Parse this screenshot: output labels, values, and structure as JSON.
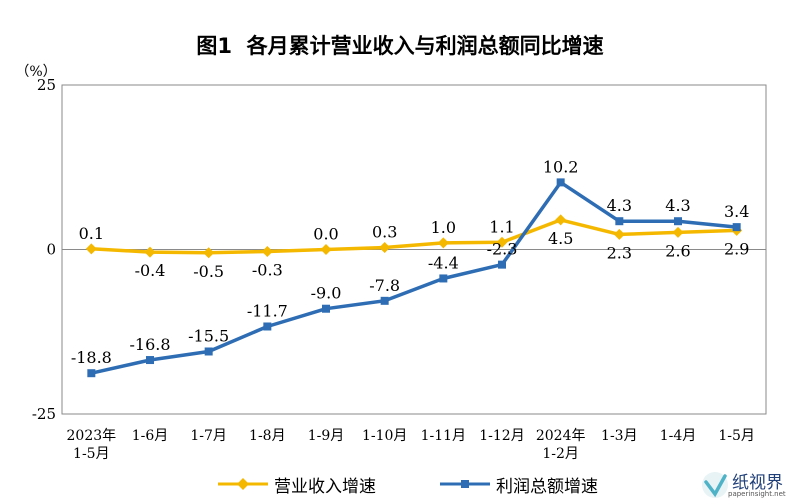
{
  "chart_data": {
    "type": "line",
    "title": "图1  各月累计营业收入与利润总额同比增速",
    "unit_label": "（%）",
    "ylim": [
      -25,
      25
    ],
    "y_ticks": [
      "25",
      "0",
      "-25"
    ],
    "categories": [
      [
        "2023年",
        "1-5月"
      ],
      [
        "1-6月"
      ],
      [
        "1-7月"
      ],
      [
        "1-8月"
      ],
      [
        "1-9月"
      ],
      [
        "1-10月"
      ],
      [
        "1-11月"
      ],
      [
        "1-12月"
      ],
      [
        "2024年",
        "1-2月"
      ],
      [
        "1-3月"
      ],
      [
        "1-4月"
      ],
      [
        "1-5月"
      ]
    ],
    "series": [
      {
        "name": "营业收入增速",
        "color": "#f5b800",
        "marker": "diamond",
        "values": [
          0.1,
          -0.4,
          -0.5,
          -0.3,
          0.0,
          0.3,
          1.0,
          1.1,
          4.5,
          2.3,
          2.6,
          2.9
        ],
        "labels": [
          "0.1",
          "-0.4",
          "-0.5",
          "-0.3",
          "0.0",
          "0.3",
          "1.0",
          "1.1",
          "4.5",
          "2.3",
          "2.6",
          "2.9"
        ],
        "label_pos": [
          "above",
          "below",
          "below",
          "below",
          "above",
          "above",
          "above",
          "above",
          "below",
          "below",
          "below",
          "below"
        ]
      },
      {
        "name": "利润总额增速",
        "color": "#2e6db4",
        "marker": "square",
        "values": [
          -18.8,
          -16.8,
          -15.5,
          -11.7,
          -9.0,
          -7.8,
          -4.4,
          -2.3,
          10.2,
          4.3,
          4.3,
          3.4
        ],
        "labels": [
          "-18.8",
          "-16.8",
          "-15.5",
          "-11.7",
          "-9.0",
          "-7.8",
          "-4.4",
          "-2.3",
          "10.2",
          "4.3",
          "4.3",
          "3.4"
        ],
        "label_pos": [
          "above",
          "above",
          "above",
          "above",
          "above",
          "above",
          "above",
          "above",
          "above",
          "above",
          "above",
          "above"
        ]
      }
    ],
    "legend_position": "bottom",
    "grid": false
  },
  "watermark": {
    "name": "纸视界",
    "url": "paperinsight.net"
  }
}
